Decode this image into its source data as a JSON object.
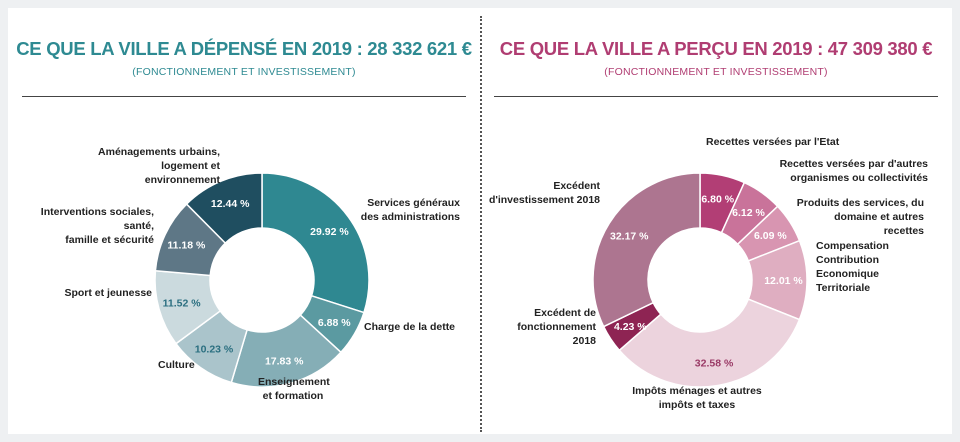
{
  "left": {
    "title": "CE QUE LA VILLE A DÉPENSÉ EN 2019 : 28 332 621 €",
    "subtitle": "(FONCTIONNEMENT ET INVESTISSEMENT)",
    "title_color": "#2e8a92"
  },
  "right": {
    "title": "CE QUE LA VILLE A PERÇU EN 2019 : 47 309 380 €",
    "subtitle": "(FONCTIONNEMENT ET INVESTISSEMENT)",
    "title_color": "#b03d72"
  },
  "chart_data": [
    {
      "type": "pie",
      "donut": true,
      "slices": [
        {
          "label": "Services généraux des administrations",
          "value": 29.92,
          "display": "29.92 %",
          "color": "#2f8891",
          "text_color": "#ffffff"
        },
        {
          "label": "Charge de la dette",
          "value": 6.88,
          "display": "6.88 %",
          "color": "#5b9aa1",
          "text_color": "#ffffff"
        },
        {
          "label": "Enseignement et formation",
          "value": 17.83,
          "display": "17.83 %",
          "color": "#85aeb6",
          "text_color": "#ffffff"
        },
        {
          "label": "Culture",
          "value": 10.23,
          "display": "10.23 %",
          "color": "#aac4cb",
          "text_color": "#2b6f80"
        },
        {
          "label": "Sport et jeunesse",
          "value": 11.52,
          "display": "11.52 %",
          "color": "#cbdade",
          "text_color": "#2b6f80"
        },
        {
          "label": "Interventions sociales, santé, famille et sécurité",
          "value": 11.18,
          "display": "11.18 %",
          "color": "#5e7786",
          "text_color": "#ffffff"
        },
        {
          "label": "Aménagements urbains, logement et environnement",
          "value": 12.44,
          "display": "12.44 %",
          "color": "#1f4e60",
          "text_color": "#ffffff"
        }
      ]
    },
    {
      "type": "pie",
      "donut": true,
      "slices": [
        {
          "label": "Recettes versées par l'Etat",
          "value": 6.8,
          "display": "6.80 %",
          "color": "#b23e75",
          "text_color": "#ffffff"
        },
        {
          "label": "Recettes versées par d'autres organismes ou collectivités",
          "value": 6.12,
          "display": "6.12 %",
          "color": "#c9739a",
          "text_color": "#ffffff"
        },
        {
          "label": "Produits des services, du domaine et autres recettes",
          "value": 6.09,
          "display": "6.09 %",
          "color": "#d895b1",
          "text_color": "#ffffff"
        },
        {
          "label": "Compensation Contribution Economique Territoriale",
          "value": 12.01,
          "display": "12.01 %",
          "color": "#dfaec1",
          "text_color": "#ffffff"
        },
        {
          "label": "Impôts ménages et autres impôts et taxes",
          "value": 32.58,
          "display": "32.58 %",
          "color": "#ecd3dd",
          "text_color": "#9a3a66"
        },
        {
          "label": "Excédent de fonctionnement 2018",
          "value": 4.23,
          "display": "4.23 %",
          "color": "#8e2453",
          "text_color": "#ffffff"
        },
        {
          "label": "Excédent d'investissement 2018",
          "value": 32.17,
          "display": "32.17 %",
          "color": "#ad7590",
          "text_color": "#ffffff"
        }
      ]
    }
  ]
}
